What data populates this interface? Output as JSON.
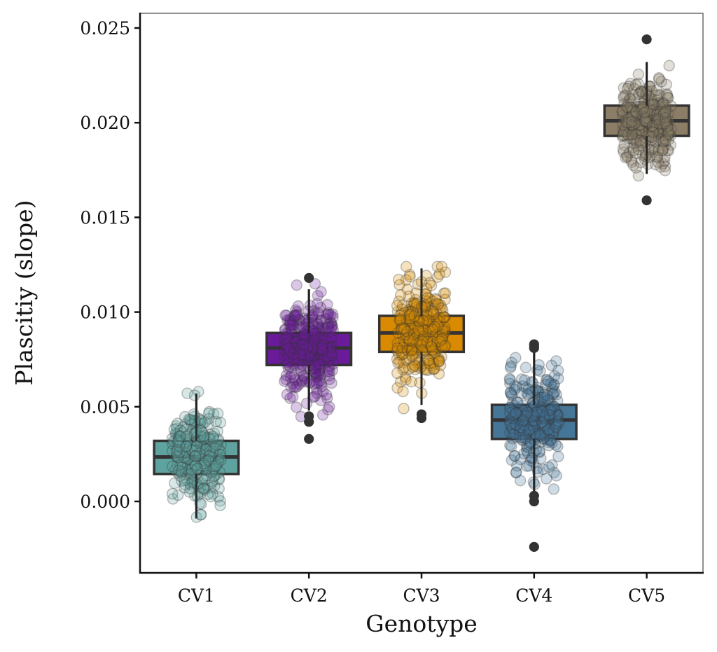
{
  "chart_data": {
    "type": "boxplot+strip",
    "title": "",
    "xlabel": "Genotype",
    "ylabel": "Plascitiy (slope)",
    "ylim": [
      -0.0037,
      0.0257
    ],
    "yticks": [
      0.0,
      0.005,
      0.01,
      0.015,
      0.02,
      0.025
    ],
    "ytick_labels": [
      "0.000",
      "0.005",
      "0.010",
      "0.015",
      "0.020",
      "0.025"
    ],
    "grid": false,
    "legend": "none",
    "categories": [
      "CV1",
      "CV2",
      "CV3",
      "CV4",
      "CV5"
    ],
    "series": [
      {
        "name": "CV1",
        "color": "#5fa3a0",
        "q1": 0.00145,
        "median": 0.00235,
        "q3": 0.0032,
        "whisker_low": -0.0009,
        "whisker_high": 0.0057,
        "outliers": [],
        "point_range": [
          -0.001,
          0.0058
        ],
        "point_center": 0.0025,
        "point_count": 260
      },
      {
        "name": "CV2",
        "color": "#6a1b9a",
        "q1": 0.0072,
        "median": 0.0081,
        "q3": 0.0089,
        "whisker_low": 0.0048,
        "whisker_high": 0.0112,
        "outliers": [
          0.0118,
          0.0045,
          0.0042,
          0.0033
        ],
        "point_range": [
          0.0033,
          0.0119
        ],
        "point_center": 0.0081,
        "point_count": 300
      },
      {
        "name": "CV3",
        "color": "#d98a00",
        "q1": 0.0079,
        "median": 0.0089,
        "q3": 0.0098,
        "whisker_low": 0.0051,
        "whisker_high": 0.0123,
        "outliers": [
          0.0046,
          0.0044
        ],
        "point_range": [
          0.0044,
          0.0124
        ],
        "point_center": 0.0089,
        "point_count": 300
      },
      {
        "name": "CV4",
        "color": "#457597",
        "q1": 0.0033,
        "median": 0.0043,
        "q3": 0.0051,
        "whisker_low": 0.0004,
        "whisker_high": 0.0079,
        "outliers": [
          0.0083,
          0.0082,
          0.0081,
          0.0003,
          0.0,
          -0.0024
        ],
        "point_range": [
          -0.0024,
          0.0084
        ],
        "point_center": 0.0043,
        "point_count": 280
      },
      {
        "name": "CV5",
        "color": "#8c7e66",
        "q1": 0.0193,
        "median": 0.0201,
        "q3": 0.0209,
        "whisker_low": 0.0173,
        "whisker_high": 0.0232,
        "outliers": [
          0.0244,
          0.0159
        ],
        "point_range": [
          0.0158,
          0.0244
        ],
        "point_center": 0.0201,
        "point_count": 300
      }
    ]
  }
}
